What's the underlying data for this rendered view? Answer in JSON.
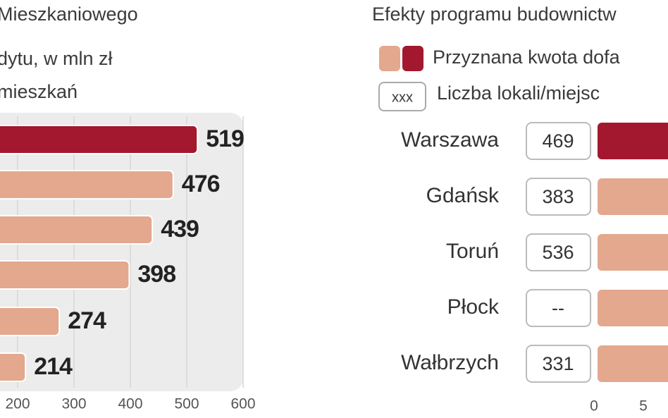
{
  "chart_data": [
    {
      "type": "hbar",
      "title_lines": [
        "Mieszkaniowego",
        "dytu, w mln zł",
        "mieszkań"
      ],
      "categories": [
        null,
        null,
        null,
        null,
        null,
        null
      ],
      "values": [
        519,
        476,
        439,
        398,
        274,
        214
      ],
      "bar_colors": [
        "#a3172f",
        "#e3a88e",
        "#e3a88e",
        "#e3a88e",
        "#e3a88e",
        "#e3a88e"
      ],
      "xlim": [
        0,
        600
      ],
      "xticks": [
        200,
        300,
        400,
        500,
        600
      ],
      "grid": true
    },
    {
      "type": "hbar-cropped",
      "title": "Efekty programu budownictw",
      "legend": [
        {
          "name": "Przyznana kwota dofa",
          "colors": [
            "#e3a88e",
            "#a3172f"
          ]
        },
        {
          "name": "Liczba lokali/miejsc",
          "sample": "xxx"
        }
      ],
      "categories": [
        "Warszawa",
        "Gdańsk",
        "Toruń",
        "Płock",
        "Wałbrzych"
      ],
      "units": [
        "469",
        "383",
        "536",
        "--",
        "331"
      ],
      "bar_colors": [
        "#a3172f",
        "#e3a88e",
        "#e3a88e",
        "#e3a88e",
        "#e3a88e"
      ],
      "xlim": [
        0,
        7.5
      ],
      "xticks": [
        0,
        5
      ]
    }
  ]
}
